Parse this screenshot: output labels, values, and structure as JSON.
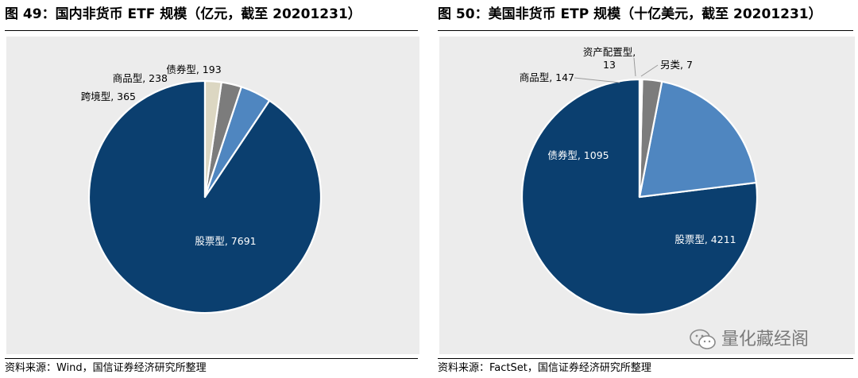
{
  "charts": [
    {
      "title": "图 49：国内非货币 ETF 规模（亿元，截至 20201231）",
      "source": "资料来源：Wind，国信证券经济研究所整理"
    },
    {
      "title": "图 50：美国非货币 ETP 规模（十亿美元，截至 20201231）",
      "source": "资料来源：FactSet，国信证券经济研究所整理"
    }
  ],
  "watermark": {
    "text": "量化藏经阁",
    "icon": "wechat-icon"
  },
  "chart_data": [
    {
      "type": "pie",
      "title": "图 49：国内非货币 ETF 规模（亿元，截至 20201231）",
      "unit": "亿元",
      "slices": [
        {
          "name": "股票型",
          "value": 7691,
          "label": "股票型, 7691",
          "color": "#0b3f6f"
        },
        {
          "name": "跨境型",
          "value": 365,
          "label": "跨境型, 365",
          "color": "#4f86c0"
        },
        {
          "name": "商品型",
          "value": 238,
          "label": "商品型, 238",
          "color": "#7c7c7c"
        },
        {
          "name": "债券型",
          "value": 193,
          "label": "债券型, 193",
          "color": "#dcd7c2"
        }
      ],
      "start": "12 o'clock",
      "direction": "counterclockwise",
      "legend": "none"
    },
    {
      "type": "pie",
      "title": "图 50：美国非货币 ETP 规模（十亿美元，截至 20201231）",
      "unit": "十亿美元",
      "slices": [
        {
          "name": "股票型",
          "value": 4211,
          "label": "股票型, 4211",
          "color": "#0b3f6f"
        },
        {
          "name": "债券型",
          "value": 1095,
          "label": "债券型, 1095",
          "color": "#4f86c0"
        },
        {
          "name": "商品型",
          "value": 147,
          "label": "商品型, 147",
          "color": "#7c7c7c"
        },
        {
          "name": "资产配置型",
          "value": 13,
          "label": "资产配置型, 13",
          "label_lines": [
            "资产配置型,",
            "13"
          ],
          "color": "#dcd7c2"
        },
        {
          "name": "另类",
          "value": 7,
          "label": "另类, 7",
          "color": "#ffffff"
        }
      ],
      "start": "12 o'clock",
      "direction": "counterclockwise",
      "legend": "none"
    }
  ]
}
